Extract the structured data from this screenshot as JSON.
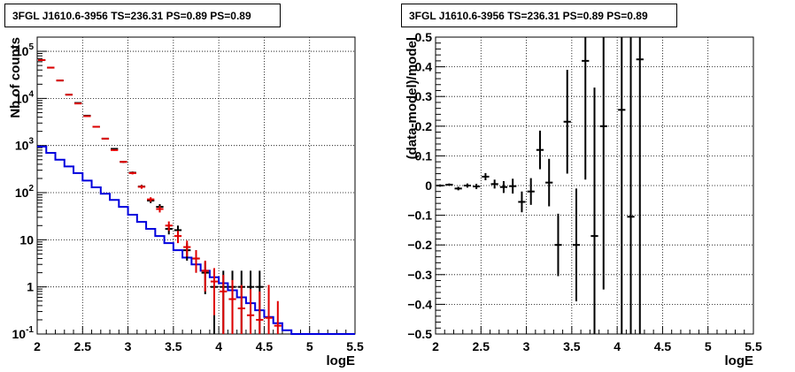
{
  "chart_data": [
    {
      "type": "line",
      "title": "3FGL J1610.6-3956 TS=236.31 PS=0.89 PS=0.89",
      "xlabel": "logE",
      "ylabel": "Nb of counts",
      "xlim": [
        2,
        5.5
      ],
      "ylim": [
        0.1,
        200000
      ],
      "yscale": "log",
      "grid": true,
      "x_ticks": [
        "2",
        "2.5",
        "3",
        "3.5",
        "4",
        "4.5",
        "5",
        "5.5"
      ],
      "y_ticks": [
        "10^-1",
        "1",
        "10",
        "10^2",
        "10^3",
        "10^4",
        "10^5"
      ],
      "series": [
        {
          "role": "data",
          "color": "#000000",
          "style": "points-with-errors",
          "points": [
            {
              "x": 2.05,
              "y": 65000,
              "lo": 64700,
              "hi": 65300
            },
            {
              "x": 2.15,
              "y": 45000,
              "lo": 44800,
              "hi": 45200
            },
            {
              "x": 2.25,
              "y": 24000,
              "lo": 23850,
              "hi": 24150
            },
            {
              "x": 2.35,
              "y": 12000,
              "lo": 11900,
              "hi": 12100
            },
            {
              "x": 2.45,
              "y": 8000,
              "lo": 7910,
              "hi": 8090
            },
            {
              "x": 2.55,
              "y": 4300,
              "lo": 4235,
              "hi": 4365
            },
            {
              "x": 2.65,
              "y": 2500,
              "lo": 2450,
              "hi": 2550
            },
            {
              "x": 2.75,
              "y": 1400,
              "lo": 1363,
              "hi": 1437
            },
            {
              "x": 2.85,
              "y": 850,
              "lo": 821,
              "hi": 879
            },
            {
              "x": 2.95,
              "y": 450,
              "lo": 429,
              "hi": 471
            },
            {
              "x": 3.05,
              "y": 265,
              "lo": 249,
              "hi": 281
            },
            {
              "x": 3.15,
              "y": 135,
              "lo": 123,
              "hi": 147
            },
            {
              "x": 3.25,
              "y": 68,
              "lo": 60,
              "hi": 76
            },
            {
              "x": 3.35,
              "y": 50,
              "lo": 43,
              "hi": 57
            },
            {
              "x": 3.45,
              "y": 17,
              "lo": 13,
              "hi": 21
            },
            {
              "x": 3.55,
              "y": 16,
              "lo": 12,
              "hi": 20
            },
            {
              "x": 3.65,
              "y": 6,
              "lo": 3.6,
              "hi": 8.4
            },
            {
              "x": 3.75,
              "y": 4,
              "lo": 2,
              "hi": 6
            },
            {
              "x": 3.85,
              "y": 2,
              "lo": 0.7,
              "hi": 3.4
            },
            {
              "x": 3.95,
              "y": 1,
              "lo": 0.1,
              "hi": 2.2
            },
            {
              "x": 4.05,
              "y": 1,
              "lo": 0.1,
              "hi": 2.2
            },
            {
              "x": 4.15,
              "y": 1,
              "lo": 0.1,
              "hi": 2.2
            },
            {
              "x": 4.25,
              "y": 1,
              "lo": 0.1,
              "hi": 2.2
            },
            {
              "x": 4.35,
              "y": 1,
              "lo": 0.1,
              "hi": 2.2
            },
            {
              "x": 4.45,
              "y": 1,
              "lo": 0.1,
              "hi": 2.2
            }
          ]
        },
        {
          "role": "model",
          "color": "#e00000",
          "style": "points-with-errors",
          "points": [
            {
              "x": 2.05,
              "y": 65000,
              "lo": 64700,
              "hi": 65300
            },
            {
              "x": 2.15,
              "y": 45000,
              "lo": 44800,
              "hi": 45200
            },
            {
              "x": 2.25,
              "y": 24000,
              "lo": 23850,
              "hi": 24150
            },
            {
              "x": 2.35,
              "y": 12000,
              "lo": 11900,
              "hi": 12100
            },
            {
              "x": 2.45,
              "y": 7800,
              "lo": 7710,
              "hi": 7890
            },
            {
              "x": 2.55,
              "y": 4200,
              "lo": 4135,
              "hi": 4265
            },
            {
              "x": 2.65,
              "y": 2500,
              "lo": 2450,
              "hi": 2550
            },
            {
              "x": 2.75,
              "y": 1400,
              "lo": 1363,
              "hi": 1437
            },
            {
              "x": 2.85,
              "y": 800,
              "lo": 772,
              "hi": 828
            },
            {
              "x": 2.95,
              "y": 450,
              "lo": 429,
              "hi": 471
            },
            {
              "x": 3.05,
              "y": 260,
              "lo": 244,
              "hi": 276
            },
            {
              "x": 3.15,
              "y": 133,
              "lo": 121,
              "hi": 145
            },
            {
              "x": 3.25,
              "y": 72,
              "lo": 64,
              "hi": 80
            },
            {
              "x": 3.35,
              "y": 45,
              "lo": 38,
              "hi": 52
            },
            {
              "x": 3.45,
              "y": 20,
              "lo": 15.5,
              "hi": 24.5
            },
            {
              "x": 3.55,
              "y": 12,
              "lo": 8.5,
              "hi": 15.5
            },
            {
              "x": 3.65,
              "y": 7,
              "lo": 4.4,
              "hi": 9.6
            },
            {
              "x": 3.75,
              "y": 4,
              "lo": 2,
              "hi": 6
            },
            {
              "x": 3.85,
              "y": 2.2,
              "lo": 0.8,
              "hi": 3.6
            },
            {
              "x": 3.95,
              "y": 1.3,
              "lo": 0.25,
              "hi": 2.5
            },
            {
              "x": 4.05,
              "y": 0.8,
              "lo": 0.1,
              "hi": 1.8
            },
            {
              "x": 4.15,
              "y": 0.55,
              "lo": 0.1,
              "hi": 1.4
            },
            {
              "x": 4.25,
              "y": 0.35,
              "lo": 0.1,
              "hi": 1.1
            },
            {
              "x": 4.35,
              "y": 0.25,
              "lo": 0.1,
              "hi": 0.9
            },
            {
              "x": 4.45,
              "y": 0.2,
              "lo": 0.1,
              "hi": 0.8
            },
            {
              "x": 4.55,
              "y": 0.22,
              "lo": 0.1,
              "hi": 1.1
            },
            {
              "x": 4.65,
              "y": 0.15,
              "lo": 0.1,
              "hi": 0.5
            }
          ]
        },
        {
          "role": "background",
          "color": "#0000dd",
          "style": "step",
          "edges": [
            2.0,
            2.1,
            2.2,
            2.3,
            2.4,
            2.5,
            2.6,
            2.7,
            2.8,
            2.9,
            3.0,
            3.1,
            3.2,
            3.3,
            3.4,
            3.5,
            3.6,
            3.7,
            3.8,
            3.9,
            4.0,
            4.1,
            4.2,
            4.3,
            4.4,
            4.5,
            4.6,
            4.7,
            4.8,
            4.9,
            5.0,
            5.1,
            5.2,
            5.3,
            5.4,
            5.5
          ],
          "values": [
            950,
            700,
            500,
            360,
            260,
            180,
            130,
            95,
            70,
            50,
            34,
            24,
            17,
            12,
            8.5,
            6,
            4.2,
            3,
            2.2,
            1.6,
            1.2,
            0.85,
            0.6,
            0.45,
            0.32,
            0.23,
            0.17,
            0.12,
            0.1,
            0.1,
            0.1,
            0.1,
            0.1,
            0.1,
            0.1
          ]
        }
      ]
    },
    {
      "type": "scatter",
      "title": "3FGL J1610.6-3956 TS=236.31 PS=0.89 PS=0.89",
      "xlabel": "logE",
      "ylabel": "(data-model)/model",
      "xlim": [
        2,
        5.5
      ],
      "ylim": [
        -0.5,
        0.5
      ],
      "grid": true,
      "x_ticks": [
        "2",
        "2.5",
        "3",
        "3.5",
        "4",
        "4.5",
        "5",
        "5.5"
      ],
      "y_ticks": [
        "−0.5",
        "−0.4",
        "−0.3",
        "−0.2",
        "−0.1",
        "0",
        "0.1",
        "0.2",
        "0.3",
        "0.4",
        "0.5"
      ],
      "series": [
        {
          "role": "residuals",
          "color": "#000000",
          "points": [
            {
              "x": 2.05,
              "y": 0.0,
              "err": 0.004
            },
            {
              "x": 2.15,
              "y": 0.003,
              "err": 0.004
            },
            {
              "x": 2.25,
              "y": -0.01,
              "err": 0.006
            },
            {
              "x": 2.35,
              "y": 0.0,
              "err": 0.007
            },
            {
              "x": 2.45,
              "y": -0.003,
              "err": 0.009
            },
            {
              "x": 2.55,
              "y": 0.03,
              "err": 0.012
            },
            {
              "x": 2.65,
              "y": 0.005,
              "err": 0.015
            },
            {
              "x": 2.75,
              "y": -0.005,
              "err": 0.02
            },
            {
              "x": 2.85,
              "y": -0.002,
              "err": 0.025
            },
            {
              "x": 2.95,
              "y": -0.055,
              "err": 0.035
            },
            {
              "x": 3.05,
              "y": -0.02,
              "err": 0.045
            },
            {
              "x": 3.15,
              "y": 0.12,
              "err": 0.065
            },
            {
              "x": 3.25,
              "y": 0.01,
              "err": 0.08
            },
            {
              "x": 3.35,
              "y": -0.2,
              "err": 0.105
            },
            {
              "x": 3.45,
              "y": 0.215,
              "err": 0.175
            },
            {
              "x": 3.55,
              "y": -0.2,
              "err": 0.19
            },
            {
              "x": 3.65,
              "y": 0.42,
              "err": 0.4
            },
            {
              "x": 3.75,
              "y": -0.17,
              "err": 0.5
            },
            {
              "x": 3.85,
              "y": 0.2,
              "err": 0.55
            },
            {
              "x": 4.05,
              "y": 0.255,
              "err": 0.8
            },
            {
              "x": 4.15,
              "y": -0.105,
              "err": 1.0
            },
            {
              "x": 4.25,
              "y": 0.425,
              "err": 1.0
            }
          ]
        }
      ]
    }
  ]
}
